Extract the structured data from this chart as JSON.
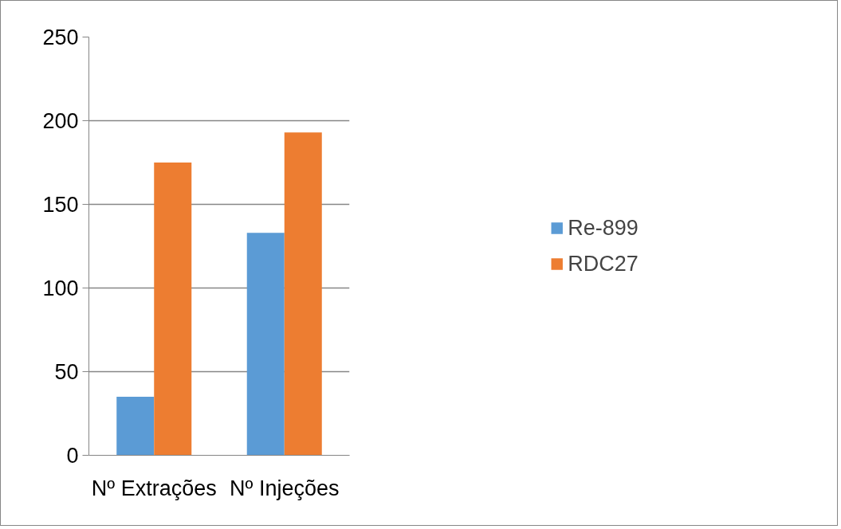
{
  "chart_data": {
    "type": "bar",
    "categories": [
      "Nº Extrações",
      "Nº Injeções"
    ],
    "series": [
      {
        "name": "Re-899",
        "color": "#5b9bd5",
        "values": [
          35,
          133
        ]
      },
      {
        "name": "RDC27",
        "color": "#ed7d31",
        "values": [
          175,
          193
        ]
      }
    ],
    "ylim": [
      0,
      250
    ],
    "yticks": [
      0,
      50,
      100,
      150,
      200,
      250
    ],
    "grid": "y",
    "legend": "right"
  }
}
